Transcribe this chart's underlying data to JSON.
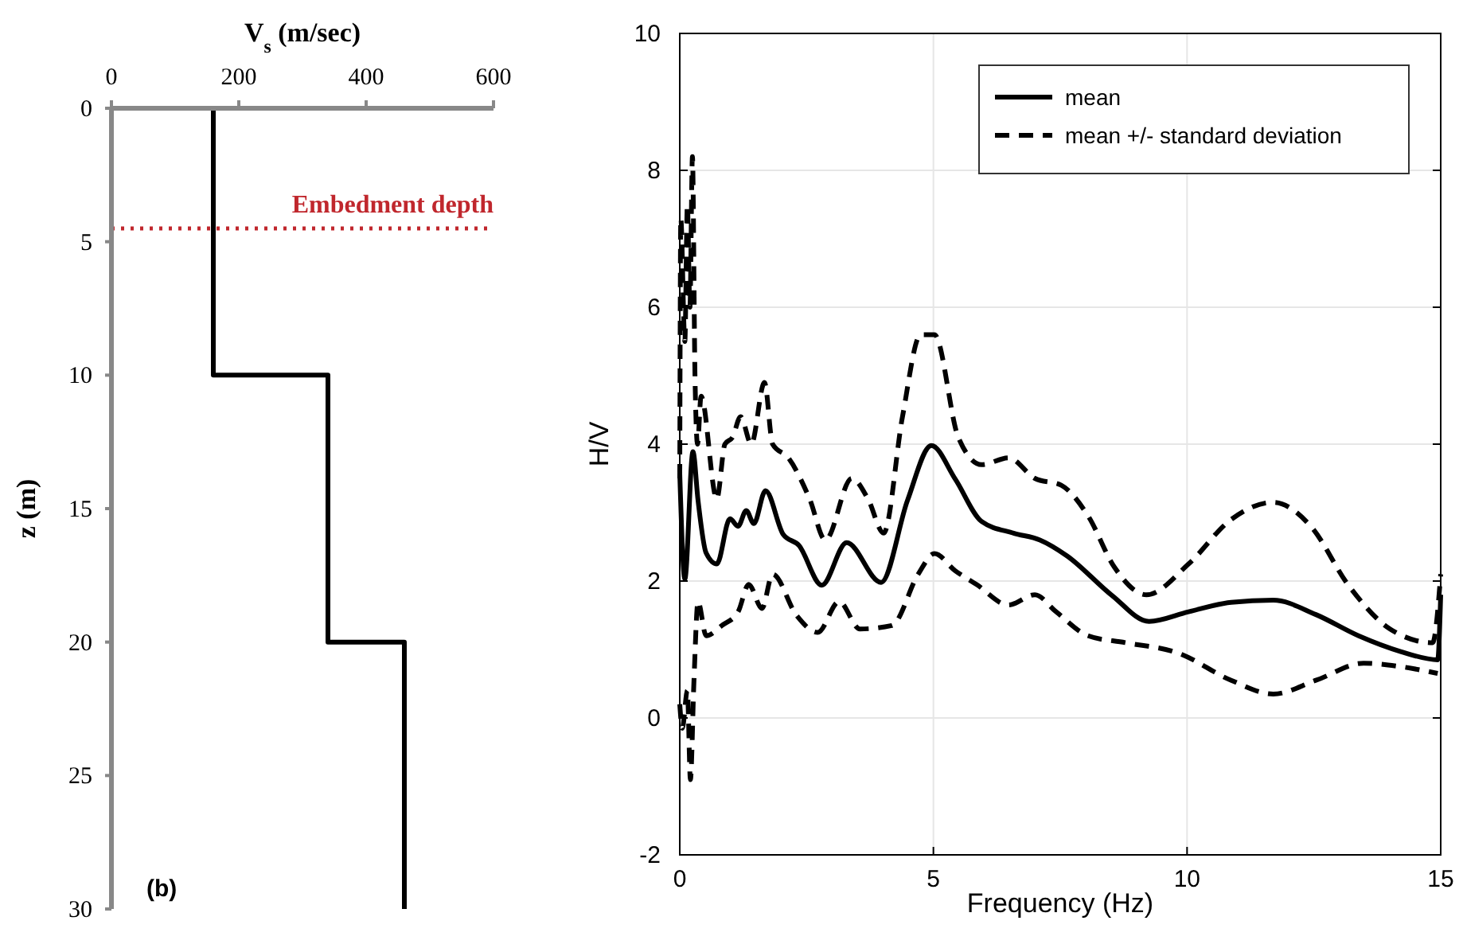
{
  "chart_data": [
    {
      "type": "line",
      "xlabel": "V$_{s}$ (m/sec)",
      "ylabel": "z (m)",
      "xlim": [
        0,
        600
      ],
      "xticks": [
        0,
        200,
        400,
        600
      ],
      "ylim": [
        30,
        0
      ],
      "yticks": [
        0,
        5,
        10,
        15,
        20,
        25,
        30
      ],
      "series": [
        {
          "color": "#000000",
          "line_style": "solid",
          "x": [
            160,
            160,
            340,
            340,
            460,
            460
          ],
          "values": [
            0,
            10,
            10,
            20,
            20,
            30
          ]
        }
      ],
      "ref_lines": [
        {
          "axis": "y",
          "value": 4.5,
          "label": "Embedment depth",
          "color": "#c0272d",
          "line_style": "dotted"
        }
      ],
      "annotations": [
        "(b)"
      ]
    },
    {
      "type": "line",
      "xlabel": "Frequency (Hz)",
      "ylabel": "H/V",
      "xlim": [
        0,
        15
      ],
      "xticks": [
        0,
        5,
        10,
        15
      ],
      "ylim": [
        -2,
        10
      ],
      "yticks": [
        -2,
        0,
        2,
        4,
        6,
        8,
        10
      ],
      "grid": true,
      "legend": "top right",
      "series": [
        {
          "name": "mean",
          "color": "#000000",
          "line_style": "solid",
          "x": [
            0,
            0.1,
            0.26,
            0.36,
            0.52,
            0.73,
            0.99,
            1.15,
            1.31,
            1.46,
            1.69,
            2.04,
            2.35,
            2.8,
            3.29,
            3.97,
            4.49,
            4.96,
            5.43,
            5.95,
            6.58,
            7.1,
            7.63,
            8.52,
            9.25,
            10.03,
            10.87,
            11.7,
            12.54,
            13.38,
            14.21,
            14.94,
            15
          ],
          "values": [
            3.57,
            2.03,
            3.89,
            3.18,
            2.41,
            2.25,
            2.91,
            2.8,
            3.03,
            2.84,
            3.32,
            2.68,
            2.52,
            1.94,
            2.56,
            1.98,
            3.18,
            3.98,
            3.49,
            2.87,
            2.7,
            2.6,
            2.37,
            1.79,
            1.41,
            1.55,
            1.69,
            1.72,
            1.51,
            1.2,
            0.97,
            0.85,
            1.8
          ]
        },
        {
          "name": "mean +/- standard deviation",
          "color": "#000000",
          "line_style": "dashed",
          "x": [
            0,
            0.02,
            0.1,
            0.15,
            0.2,
            0.25,
            0.3,
            0.35,
            0.42,
            0.73,
            0.89,
            1.04,
            1.2,
            1.41,
            1.67,
            1.83,
            2.14,
            2.56,
            2.87,
            3.39,
            3.71,
            4.02,
            4.39,
            4.75,
            5.02,
            5.49,
            5.95,
            6.48,
            7,
            7.52,
            8.05,
            8.57,
            9.2,
            10.03,
            10.87,
            11.7,
            12.44,
            13.17,
            14,
            14.84,
            15
          ],
          "values": [
            3.5,
            7.3,
            5.5,
            7.5,
            6,
            8.2,
            5,
            4,
            4.7,
            3.2,
            4,
            4.1,
            4.4,
            4,
            4.9,
            4,
            3.8,
            3.2,
            2.6,
            3.5,
            3.2,
            2.7,
            4.4,
            5.6,
            5.6,
            4.1,
            3.7,
            3.8,
            3.5,
            3.4,
            2.95,
            2.2,
            1.8,
            2.25,
            2.9,
            3.15,
            2.8,
            1.95,
            1.3,
            1.1,
            2.1
          ]
        },
        {
          "color": "#000000",
          "line_style": "dashed",
          "x": [
            0,
            0.05,
            0.15,
            0.21,
            0.28,
            0.36,
            0.52,
            0.83,
            1.15,
            1.36,
            1.62,
            1.83,
            2.3,
            2.72,
            3.14,
            3.55,
            4.18,
            4.7,
            5.02,
            5.43,
            5.85,
            6.48,
            7,
            7.42,
            8.05,
            8.78,
            9.82,
            10.87,
            11.7,
            12.54,
            13.48,
            14.21,
            14.94
          ],
          "values": [
            0.2,
            -0.15,
            0.4,
            -0.9,
            0.55,
            1.7,
            1.2,
            1.35,
            1.55,
            1.95,
            1.6,
            2.1,
            1.5,
            1.25,
            1.7,
            1.3,
            1.35,
            2.1,
            2.4,
            2.15,
            1.95,
            1.65,
            1.8,
            1.55,
            1.2,
            1.1,
            0.95,
            0.55,
            0.35,
            0.55,
            0.8,
            0.75,
            0.65
          ]
        }
      ]
    }
  ]
}
